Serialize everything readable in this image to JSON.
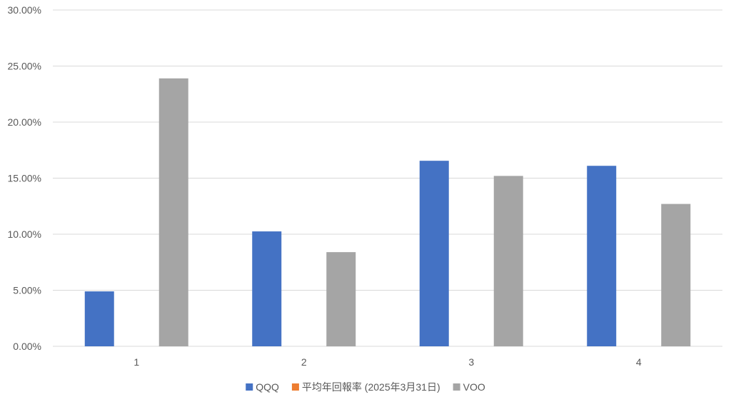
{
  "chart_data": {
    "type": "bar",
    "categories": [
      "1",
      "2",
      "3",
      "4"
    ],
    "series": [
      {
        "name": "QQQ",
        "values": [
          4.9,
          10.25,
          16.55,
          16.1
        ],
        "color": "#4472c4"
      },
      {
        "name": "平均年回報率 (2025年3月31日)",
        "values": [
          null,
          null,
          null,
          null
        ],
        "color": "#ed7d31"
      },
      {
        "name": "VOO",
        "values": [
          23.9,
          8.4,
          15.2,
          12.7
        ],
        "color": "#a5a5a5"
      }
    ],
    "y_ticks": [
      "0.00%",
      "5.00%",
      "10.00%",
      "15.00%",
      "20.00%",
      "25.00%",
      "30.00%"
    ],
    "ylim": [
      0,
      30
    ],
    "y_unit": "percent",
    "grid": true,
    "legend_position": "bottom"
  }
}
